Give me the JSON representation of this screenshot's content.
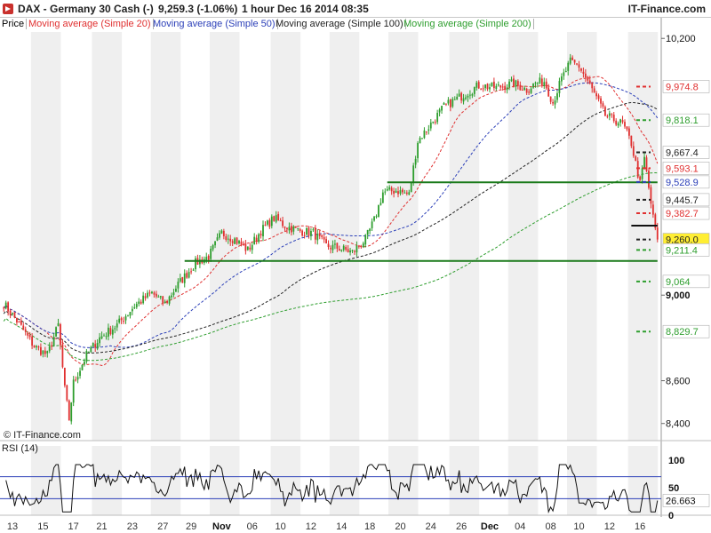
{
  "header": {
    "title": "DAX - Germany 30 Cash (-)",
    "quote": "9,259.3 (-1.06%)",
    "period": "1 hour  Dec 16 2014 08:35",
    "brand": "IT-Finance.com"
  },
  "legend": {
    "items": [
      {
        "label": "Price",
        "color": "#222222"
      },
      {
        "label": "Moving average (Simple 20)",
        "color": "#e03030"
      },
      {
        "label": "Moving average (Simple 50)",
        "color": "#2b3fb8"
      },
      {
        "label": "Moving average (Simple 100)",
        "color": "#222222"
      },
      {
        "label": "Moving average (Simple 200)",
        "color": "#2e9e2e"
      }
    ]
  },
  "copyright": "© IT-Finance.com",
  "rsi": {
    "label": "RSI (14)",
    "scale_labels": [
      "100",
      "50",
      "0"
    ],
    "last_value": "26.663",
    "upper": 70,
    "lower": 30
  },
  "colors": {
    "up_candle": "#2e9e2e",
    "down_candle": "#e03030",
    "support_line": "#1a7a1a",
    "rsi_line": "#111111",
    "rsi_band": "#2b3fb8",
    "rsi_fill": "#c8a0b8",
    "stripe": "#efefef"
  },
  "chart_data": {
    "type": "candlestick",
    "title": "DAX - Germany 30 Cash (-)",
    "price_axis": {
      "min": 8320,
      "max": 10230,
      "major_ticks": [
        "10,200",
        "9,000",
        "8,600",
        "8,400"
      ],
      "level_labels": [
        {
          "value": 9974.8,
          "text": "9,974.8",
          "color": "#e03030"
        },
        {
          "value": 9818.1,
          "text": "9,818.1",
          "color": "#2e9e2e"
        },
        {
          "value": 9667.4,
          "text": "9,667.4",
          "color": "#222222"
        },
        {
          "value": 9593.1,
          "text": "9,593.1",
          "color": "#e03030"
        },
        {
          "value": 9528.9,
          "text": "9,528.9",
          "color": "#2b3fb8"
        },
        {
          "value": 9445.7,
          "text": "9,445.7",
          "color": "#222222"
        },
        {
          "value": 9382.7,
          "text": "9,382.7",
          "color": "#e03030"
        },
        {
          "value": 9260.0,
          "text": "9,260.0",
          "color": "#222222"
        },
        {
          "value": 9211.4,
          "text": "9,211.4",
          "color": "#2e9e2e"
        },
        {
          "value": 9064,
          "text": "9,064",
          "color": "#2e9e2e"
        },
        {
          "value": 8829.7,
          "text": "8,829.7",
          "color": "#2e9e2e"
        }
      ],
      "last_price": 9260.0
    },
    "x_labels": [
      "13",
      "15",
      "17",
      "21",
      "23",
      "27",
      "29",
      "Nov",
      "06",
      "10",
      "12",
      "14",
      "18",
      "20",
      "24",
      "26",
      "Dec",
      "04",
      "08",
      "10",
      "12",
      "16"
    ],
    "anchors": [
      {
        "i": 0,
        "v": 8960
      },
      {
        "i": 6,
        "v": 8880
      },
      {
        "i": 14,
        "v": 8760
      },
      {
        "i": 20,
        "v": 8720
      },
      {
        "i": 25,
        "v": 8860
      },
      {
        "i": 28,
        "v": 8560
      },
      {
        "i": 30,
        "v": 8420
      },
      {
        "i": 32,
        "v": 8590
      },
      {
        "i": 38,
        "v": 8720
      },
      {
        "i": 44,
        "v": 8800
      },
      {
        "i": 52,
        "v": 8860
      },
      {
        "i": 60,
        "v": 8950
      },
      {
        "i": 68,
        "v": 9010
      },
      {
        "i": 74,
        "v": 8960
      },
      {
        "i": 80,
        "v": 9050
      },
      {
        "i": 88,
        "v": 9150
      },
      {
        "i": 94,
        "v": 9180
      },
      {
        "i": 100,
        "v": 9290
      },
      {
        "i": 106,
        "v": 9260
      },
      {
        "i": 112,
        "v": 9210
      },
      {
        "i": 118,
        "v": 9300
      },
      {
        "i": 124,
        "v": 9360
      },
      {
        "i": 130,
        "v": 9320
      },
      {
        "i": 136,
        "v": 9300
      },
      {
        "i": 142,
        "v": 9290
      },
      {
        "i": 148,
        "v": 9230
      },
      {
        "i": 154,
        "v": 9220
      },
      {
        "i": 160,
        "v": 9200
      },
      {
        "i": 166,
        "v": 9260
      },
      {
        "i": 170,
        "v": 9350
      },
      {
        "i": 174,
        "v": 9480
      },
      {
        "i": 180,
        "v": 9490
      },
      {
        "i": 186,
        "v": 9470
      },
      {
        "i": 190,
        "v": 9720
      },
      {
        "i": 196,
        "v": 9800
      },
      {
        "i": 202,
        "v": 9880
      },
      {
        "i": 210,
        "v": 9930
      },
      {
        "i": 218,
        "v": 9980
      },
      {
        "i": 226,
        "v": 9970
      },
      {
        "i": 234,
        "v": 9990
      },
      {
        "i": 240,
        "v": 9960
      },
      {
        "i": 244,
        "v": 9990
      },
      {
        "i": 248,
        "v": 10000
      },
      {
        "i": 252,
        "v": 9900
      },
      {
        "i": 256,
        "v": 10010
      },
      {
        "i": 260,
        "v": 10090
      },
      {
        "i": 264,
        "v": 10070
      },
      {
        "i": 268,
        "v": 10000
      },
      {
        "i": 272,
        "v": 9920
      },
      {
        "i": 276,
        "v": 9840
      },
      {
        "i": 280,
        "v": 9820
      },
      {
        "i": 284,
        "v": 9800
      },
      {
        "i": 288,
        "v": 9710
      },
      {
        "i": 292,
        "v": 9520
      },
      {
        "i": 294,
        "v": 9640
      },
      {
        "i": 298,
        "v": 9360
      },
      {
        "i": 300,
        "v": 9260
      }
    ],
    "support_lines": [
      {
        "value": 9527,
        "from": 176,
        "to": 300
      },
      {
        "value": 9160,
        "from": 83,
        "to": 300
      },
      {
        "value": 9325,
        "from": 288,
        "to": 300
      }
    ],
    "series": [
      {
        "name": "Moving average (Simple 20)",
        "period": 20,
        "color": "#e03030"
      },
      {
        "name": "Moving average (Simple 50)",
        "period": 50,
        "color": "#2b3fb8"
      },
      {
        "name": "Moving average (Simple 100)",
        "period": 100,
        "color": "#222222"
      },
      {
        "name": "Moving average (Simple 200)",
        "period": 200,
        "color": "#2e9e2e"
      }
    ]
  }
}
